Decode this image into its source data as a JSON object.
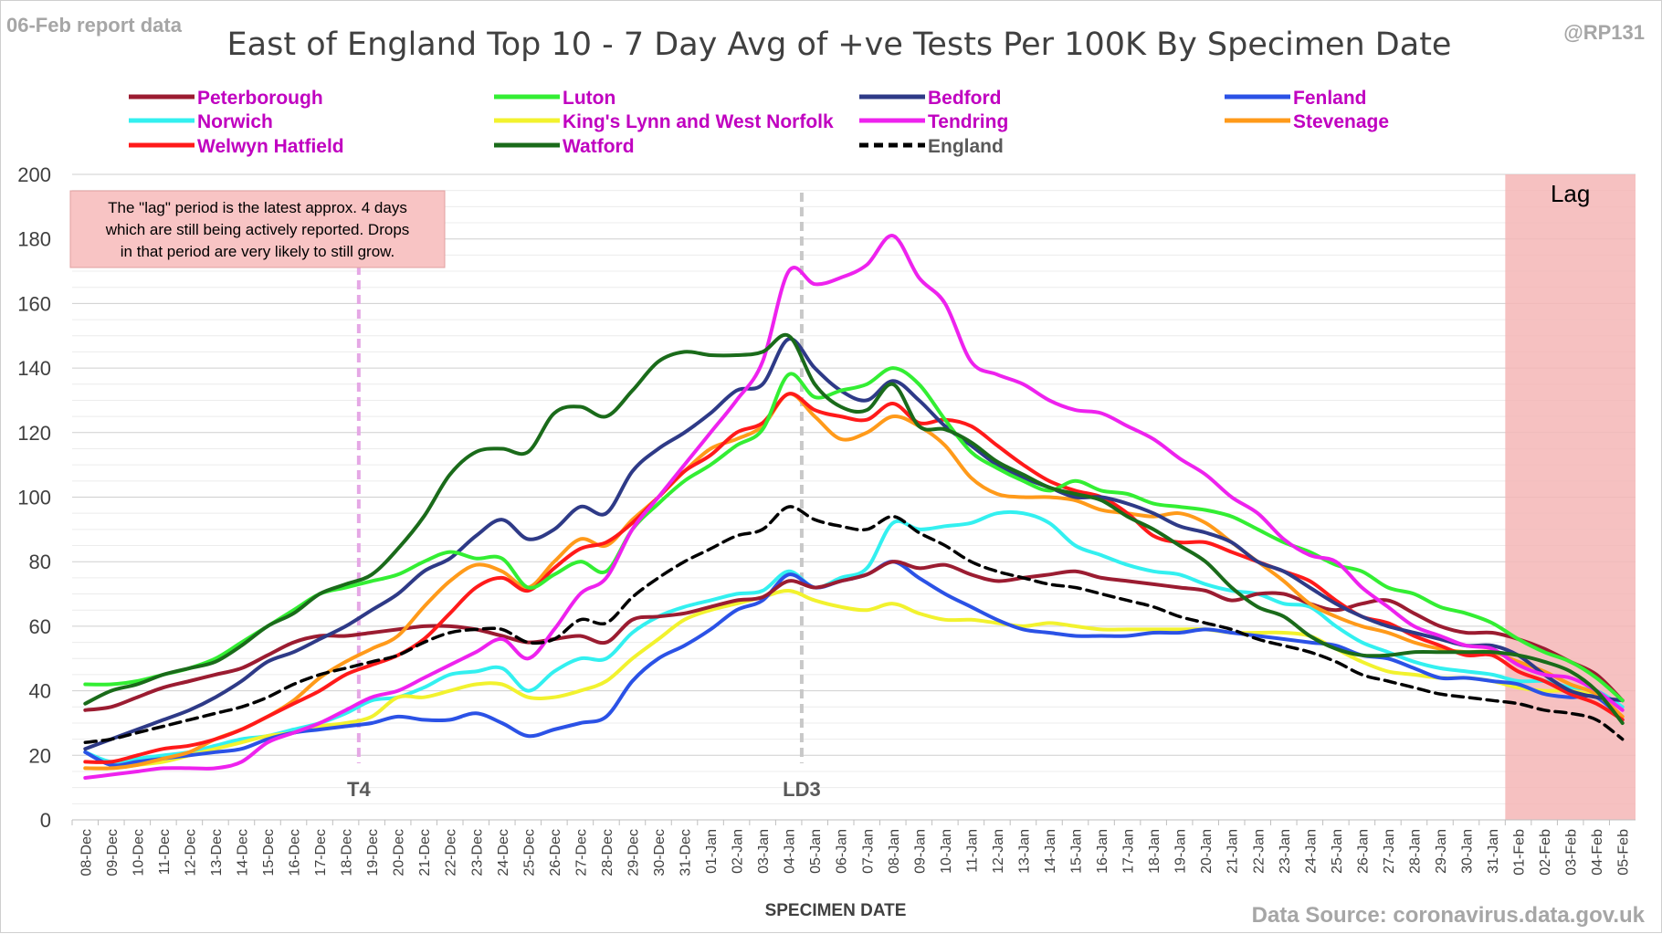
{
  "report_date": "06-Feb report data",
  "handle": "@RP131",
  "source_text": "Data Source: coronavirus.data.gov.uk",
  "colors": {
    "background": "#ffffff",
    "grid": "#d9d9d9",
    "lag_fill": "#f4b6b6",
    "note_fill": "#f8c4c4",
    "marker_t4": "#e5a8e5",
    "marker_ld3": "#c8c8c8",
    "legend_text": "#c000c0"
  },
  "chart_data": {
    "type": "line",
    "title": "East of England Top 10 - 7 Day Avg of +ve Tests Per 100K By Specimen Date",
    "xlabel": "SPECIMEN DATE",
    "ylabel": "",
    "ylim": [
      0,
      200
    ],
    "yticks": [
      0,
      20,
      40,
      60,
      80,
      100,
      120,
      140,
      160,
      180,
      200
    ],
    "grid": true,
    "legend_position": "top",
    "x": [
      "08-Dec",
      "09-Dec",
      "10-Dec",
      "11-Dec",
      "12-Dec",
      "13-Dec",
      "14-Dec",
      "15-Dec",
      "16-Dec",
      "17-Dec",
      "18-Dec",
      "19-Dec",
      "20-Dec",
      "21-Dec",
      "22-Dec",
      "23-Dec",
      "24-Dec",
      "25-Dec",
      "26-Dec",
      "27-Dec",
      "28-Dec",
      "29-Dec",
      "30-Dec",
      "31-Dec",
      "01-Jan",
      "02-Jan",
      "03-Jan",
      "04-Jan",
      "05-Jan",
      "06-Jan",
      "07-Jan",
      "08-Jan",
      "09-Jan",
      "10-Jan",
      "11-Jan",
      "12-Jan",
      "13-Jan",
      "14-Jan",
      "15-Jan",
      "16-Jan",
      "17-Jan",
      "18-Jan",
      "19-Jan",
      "20-Jan",
      "21-Jan",
      "22-Jan",
      "23-Jan",
      "24-Jan",
      "25-Jan",
      "26-Jan",
      "27-Jan",
      "28-Jan",
      "29-Jan",
      "30-Jan",
      "31-Jan",
      "01-Feb",
      "02-Feb",
      "03-Feb",
      "04-Feb",
      "05-Feb"
    ],
    "series": [
      {
        "name": "Peterborough",
        "color": "#9b1c31",
        "dash": false,
        "values": [
          34,
          35,
          38,
          41,
          43,
          45,
          47,
          51,
          55,
          57,
          57,
          58,
          59,
          60,
          60,
          59,
          57,
          55,
          56,
          57,
          55,
          62,
          63,
          64,
          66,
          68,
          69,
          74,
          72,
          74,
          76,
          80,
          78,
          79,
          76,
          74,
          75,
          76,
          77,
          75,
          74,
          73,
          72,
          71,
          68,
          70,
          70,
          67,
          65,
          67,
          68,
          64,
          60,
          58,
          58,
          56,
          53,
          49,
          45,
          37
        ]
      },
      {
        "name": "Luton",
        "color": "#33ee33",
        "dash": false,
        "values": [
          42,
          42,
          43,
          45,
          47,
          50,
          55,
          60,
          65,
          70,
          72,
          74,
          76,
          80,
          83,
          81,
          81,
          72,
          76,
          80,
          77,
          90,
          98,
          105,
          110,
          116,
          121,
          138,
          131,
          133,
          135,
          140,
          135,
          124,
          114,
          109,
          105,
          102,
          105,
          102,
          101,
          98,
          97,
          96,
          94,
          90,
          86,
          83,
          79,
          77,
          72,
          70,
          66,
          64,
          61,
          56,
          52,
          49,
          44,
          37
        ]
      },
      {
        "name": "Bedford",
        "color": "#2e3a87",
        "dash": false,
        "values": [
          22,
          25,
          28,
          31,
          34,
          38,
          43,
          49,
          52,
          56,
          60,
          65,
          70,
          77,
          81,
          88,
          93,
          87,
          90,
          97,
          95,
          108,
          115,
          120,
          126,
          133,
          135,
          149,
          140,
          133,
          130,
          136,
          130,
          122,
          116,
          110,
          106,
          103,
          100,
          100,
          98,
          95,
          91,
          89,
          86,
          80,
          77,
          72,
          67,
          63,
          60,
          58,
          56,
          54,
          54,
          51,
          45,
          40,
          38,
          37
        ]
      },
      {
        "name": "Fenland",
        "color": "#2b52e6",
        "dash": false,
        "values": [
          21,
          17,
          18,
          19,
          20,
          21,
          22,
          25,
          27,
          28,
          29,
          30,
          32,
          31,
          31,
          33,
          30,
          26,
          28,
          30,
          32,
          43,
          50,
          54,
          59,
          65,
          68,
          76,
          72,
          74,
          76,
          80,
          75,
          70,
          66,
          62,
          59,
          58,
          57,
          57,
          57,
          58,
          58,
          59,
          58,
          57,
          56,
          55,
          54,
          51,
          50,
          47,
          44,
          44,
          43,
          42,
          39,
          38,
          38,
          31
        ]
      },
      {
        "name": "Norwich",
        "color": "#33f0f0",
        "dash": false,
        "values": [
          21,
          18,
          19,
          20,
          21,
          23,
          25,
          26,
          28,
          30,
          33,
          37,
          38,
          41,
          45,
          46,
          47,
          40,
          46,
          50,
          50,
          58,
          63,
          66,
          68,
          70,
          71,
          77,
          72,
          75,
          78,
          92,
          90,
          91,
          92,
          95,
          95,
          92,
          85,
          82,
          79,
          77,
          76,
          73,
          71,
          70,
          67,
          66,
          60,
          55,
          52,
          49,
          47,
          46,
          45,
          43,
          43,
          41,
          40,
          35
        ]
      },
      {
        "name": "King's Lynn and West Norfolk",
        "color": "#f2f22e",
        "dash": false,
        "values": [
          16,
          16,
          17,
          18,
          20,
          22,
          24,
          26,
          27,
          29,
          30,
          32,
          38,
          38,
          40,
          42,
          42,
          38,
          38,
          40,
          43,
          50,
          56,
          62,
          65,
          67,
          69,
          71,
          68,
          66,
          65,
          67,
          64,
          62,
          62,
          61,
          60,
          61,
          60,
          59,
          59,
          59,
          59,
          59,
          58,
          58,
          58,
          57,
          53,
          49,
          46,
          45,
          44,
          44,
          43,
          41,
          40,
          40,
          38,
          32
        ]
      },
      {
        "name": "Tendring",
        "color": "#ee22ee",
        "dash": false,
        "values": [
          13,
          14,
          15,
          16,
          16,
          16,
          18,
          24,
          27,
          30,
          34,
          38,
          40,
          44,
          48,
          52,
          56,
          50,
          59,
          70,
          75,
          90,
          100,
          110,
          120,
          130,
          142,
          170,
          166,
          168,
          172,
          181,
          168,
          160,
          142,
          138,
          135,
          130,
          127,
          126,
          122,
          118,
          112,
          107,
          100,
          95,
          87,
          82,
          80,
          72,
          66,
          60,
          57,
          54,
          53,
          48,
          45,
          44,
          40,
          34
        ]
      },
      {
        "name": "Stevenage",
        "color": "#ff9a1a",
        "dash": false,
        "values": [
          16,
          16,
          17,
          19,
          21,
          25,
          28,
          32,
          37,
          44,
          49,
          53,
          57,
          66,
          74,
          79,
          77,
          72,
          80,
          87,
          85,
          93,
          100,
          108,
          115,
          118,
          122,
          132,
          125,
          118,
          120,
          125,
          122,
          116,
          106,
          101,
          100,
          100,
          99,
          96,
          95,
          94,
          95,
          92,
          86,
          80,
          74,
          67,
          63,
          60,
          58,
          55,
          53,
          52,
          52,
          49,
          46,
          42,
          39,
          32
        ]
      },
      {
        "name": "Welwyn Hatfield",
        "color": "#ff1a1a",
        "dash": false,
        "values": [
          18,
          18,
          20,
          22,
          23,
          25,
          28,
          32,
          36,
          40,
          45,
          48,
          51,
          56,
          64,
          72,
          75,
          71,
          78,
          84,
          86,
          92,
          100,
          108,
          113,
          120,
          123,
          132,
          127,
          125,
          124,
          129,
          123,
          124,
          122,
          116,
          110,
          105,
          102,
          100,
          95,
          88,
          86,
          86,
          83,
          80,
          77,
          74,
          68,
          63,
          61,
          57,
          54,
          51,
          51,
          46,
          43,
          39,
          36,
          31
        ]
      },
      {
        "name": "Watford",
        "color": "#1a6b1a",
        "dash": false,
        "values": [
          36,
          40,
          42,
          45,
          47,
          49,
          54,
          60,
          64,
          70,
          73,
          76,
          84,
          94,
          107,
          114,
          115,
          114,
          126,
          128,
          125,
          133,
          142,
          145,
          144,
          144,
          145,
          150,
          135,
          128,
          127,
          135,
          122,
          121,
          117,
          111,
          107,
          103,
          101,
          99,
          94,
          90,
          85,
          80,
          72,
          66,
          63,
          57,
          53,
          51,
          51,
          52,
          52,
          52,
          52,
          51,
          49,
          46,
          40,
          30
        ]
      },
      {
        "name": "England",
        "color": "#000000",
        "dash": true,
        "values": [
          24,
          25,
          27,
          29,
          31,
          33,
          35,
          38,
          42,
          45,
          47,
          49,
          51,
          55,
          58,
          59,
          59,
          55,
          56,
          62,
          61,
          69,
          75,
          80,
          84,
          88,
          90,
          97,
          93,
          91,
          90,
          94,
          89,
          85,
          80,
          77,
          75,
          73,
          72,
          70,
          68,
          66,
          63,
          61,
          59,
          56,
          54,
          52,
          49,
          45,
          43,
          41,
          39,
          38,
          37,
          36,
          34,
          33,
          31,
          25
        ]
      }
    ],
    "legend_label_colors": [
      "#c000c0",
      "#c000c0",
      "#c000c0",
      "#c000c0",
      "#c000c0",
      "#c000c0",
      "#c000c0",
      "#c000c0",
      "#c000c0",
      "#c000c0",
      "#595959"
    ],
    "annotations": {
      "t4": {
        "label": "T4",
        "at": "19-Dec"
      },
      "ld3": {
        "label": "LD3",
        "at": "05-Jan"
      },
      "lag": {
        "label": "Lag",
        "from": "01-Feb",
        "to": "05-Feb"
      },
      "note_lines": [
        "The \"lag\" period is the latest approx. 4 days",
        "which are still being actively reported.  Drops",
        "in that period are very likely to still grow."
      ]
    }
  }
}
